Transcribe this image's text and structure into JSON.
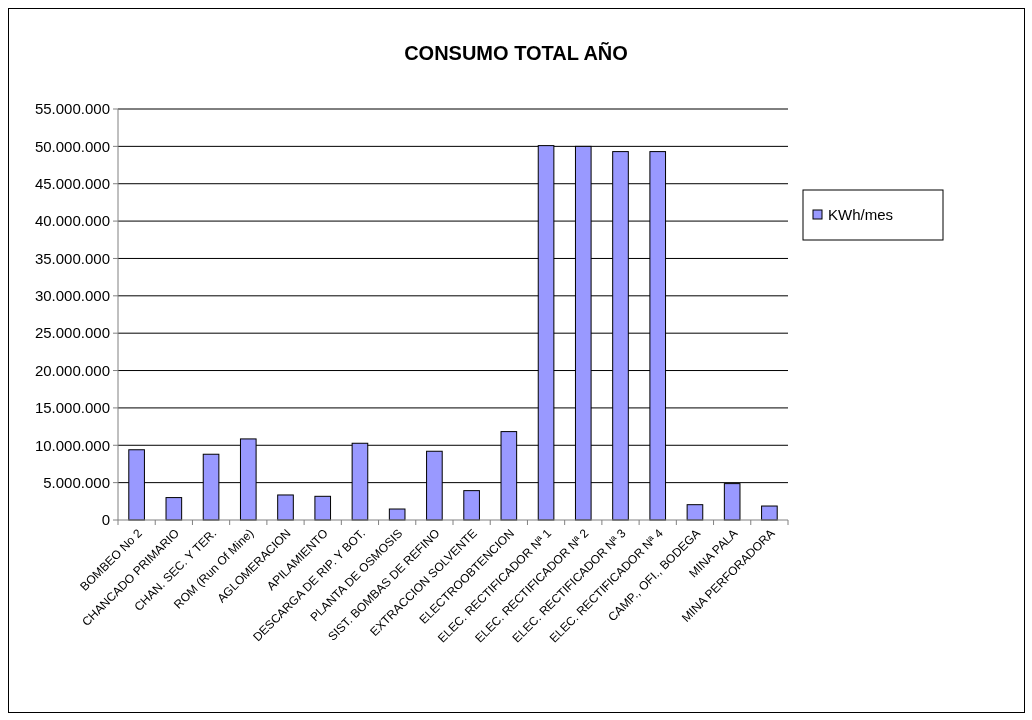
{
  "chart_data": {
    "type": "bar",
    "title": "CONSUMO TOTAL AÑO",
    "categories": [
      "BOMBEO No 2",
      "CHANCADO PRIMARIO",
      "CHAN. SEC. Y TER.",
      "ROM (Run Of Mine)",
      "AGLOMERACION",
      "APILAMIENTO",
      "DESCARGA DE RIP. Y BOT.",
      "PLANTA DE OSMOSIS",
      "SIST. BOMBAS DE REFINO",
      "EXTRACCION SOLVENTE",
      "ELECTROOBTENCION",
      "ELEC. RECTIFICADOR Nª 1",
      "ELEC. RECTIFICADOR Nª 2",
      "ELEC. RECTIFICADOR Nª 3",
      "ELEC. RECTIFICADOR Nª 4",
      "CAMP., OFI., BODEGA",
      "MINA PALA",
      "MINA PERFORADORA"
    ],
    "series": [
      {
        "name": "KWh/mes",
        "color": "#9999ff",
        "values": [
          9400000,
          3000000,
          8800000,
          10850000,
          3350000,
          3170000,
          10270000,
          1470000,
          9200000,
          3930000,
          11830000,
          50100000,
          50000000,
          49300000,
          49300000,
          2050000,
          4870000,
          1870000
        ]
      }
    ],
    "ylim": [
      0,
      55000000
    ],
    "yticks": [
      {
        "value": 0,
        "label": "0"
      },
      {
        "value": 5000000,
        "label": "5.000.000"
      },
      {
        "value": 10000000,
        "label": "10.000.000"
      },
      {
        "value": 15000000,
        "label": "15.000.000"
      },
      {
        "value": 20000000,
        "label": "20.000.000"
      },
      {
        "value": 25000000,
        "label": "25.000.000"
      },
      {
        "value": 30000000,
        "label": "30.000.000"
      },
      {
        "value": 35000000,
        "label": "35.000.000"
      },
      {
        "value": 40000000,
        "label": "40.000.000"
      },
      {
        "value": 45000000,
        "label": "45.000.000"
      },
      {
        "value": 50000000,
        "label": "50.000.000"
      },
      {
        "value": 55000000,
        "label": "55.000.000"
      }
    ],
    "grid": "y",
    "legend": "right"
  }
}
